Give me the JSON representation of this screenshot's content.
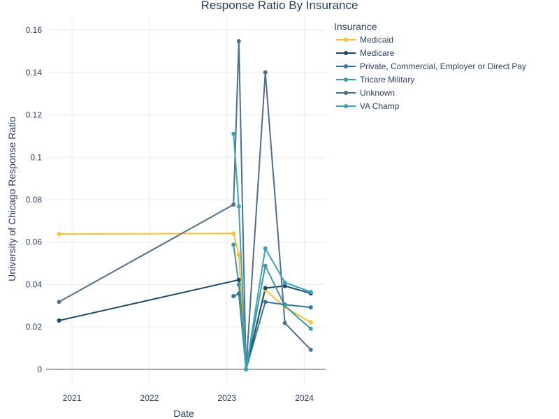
{
  "chart_data": {
    "type": "line",
    "title": "Response Ratio By Insurance",
    "xlabel": "Date",
    "ylabel": "University of Chicago Response Ratio",
    "x_ticks": [
      "2021",
      "2022",
      "2023",
      "2024"
    ],
    "x_tick_dates": [
      "2021-01-01",
      "2022-01-01",
      "2023-01-01",
      "2024-01-01"
    ],
    "xlim": [
      "2020-09-01",
      "2024-04-10"
    ],
    "y_ticks": [
      "0",
      "0.02",
      "0.04",
      "0.06",
      "0.08",
      "0.1",
      "0.12",
      "0.14",
      "0.16"
    ],
    "y_tick_values": [
      0,
      0.02,
      0.04,
      0.06,
      0.08,
      0.1,
      0.12,
      0.14,
      0.16
    ],
    "ylim": [
      -0.007,
      0.166
    ],
    "grid": true,
    "legend": {
      "title": "Insurance",
      "placement": "top-right, outside plot"
    },
    "series": [
      {
        "name": "Medicaid",
        "color": "#fbc02d",
        "points": [
          [
            "2020-11-01",
            0.0638
          ],
          [
            "2023-02-01",
            0.0641
          ],
          [
            "2023-02-26",
            0.054
          ],
          [
            "2023-04-01",
            0.0
          ],
          [
            "2023-07-01",
            0.0375
          ],
          [
            "2023-10-01",
            0.0293
          ],
          [
            "2024-01-31",
            0.0222
          ]
        ]
      },
      {
        "name": "Medicare",
        "color": "#1a4a6b",
        "points": [
          [
            "2020-11-01",
            0.023
          ],
          [
            "2023-02-26",
            0.0422
          ],
          [
            "2023-04-01",
            0.0
          ],
          [
            "2023-07-01",
            0.0383
          ],
          [
            "2023-10-01",
            0.0393
          ],
          [
            "2024-01-31",
            0.0358
          ]
        ]
      },
      {
        "name": "Private, Commercial, Employer or Direct Pay",
        "color": "#2e77a8",
        "points": [
          [
            "2023-02-01",
            0.0345
          ],
          [
            "2023-02-26",
            0.0357
          ],
          [
            "2023-04-01",
            0.0
          ],
          [
            "2023-07-01",
            0.0318
          ],
          [
            "2023-10-01",
            0.0305
          ],
          [
            "2024-01-31",
            0.0292
          ]
        ]
      },
      {
        "name": "Tricare Military",
        "color": "#3b9b9b",
        "points": [
          [
            "2023-02-01",
            0.0588
          ],
          [
            "2023-02-26",
            0.0399
          ],
          [
            "2023-04-01",
            0.0
          ],
          [
            "2023-07-01",
            0.0488
          ],
          [
            "2023-10-01",
            0.0299
          ],
          [
            "2024-01-31",
            0.0191
          ]
        ]
      },
      {
        "name": "Unknown",
        "color": "#4e6e8e",
        "points": [
          [
            "2020-11-01",
            0.0318
          ],
          [
            "2023-02-01",
            0.0777
          ],
          [
            "2023-02-26",
            0.1548
          ],
          [
            "2023-04-01",
            0.0
          ],
          [
            "2023-07-01",
            0.1401
          ],
          [
            "2023-10-01",
            0.0218
          ],
          [
            "2024-01-31",
            0.0092
          ]
        ]
      },
      {
        "name": "VA Champ",
        "color": "#35a4bc",
        "points": [
          [
            "2023-02-01",
            0.1111
          ],
          [
            "2023-02-26",
            0.0769
          ],
          [
            "2023-04-01",
            0.0
          ],
          [
            "2023-07-01",
            0.057
          ],
          [
            "2023-10-01",
            0.0409
          ],
          [
            "2024-01-31",
            0.0365
          ]
        ]
      }
    ]
  }
}
